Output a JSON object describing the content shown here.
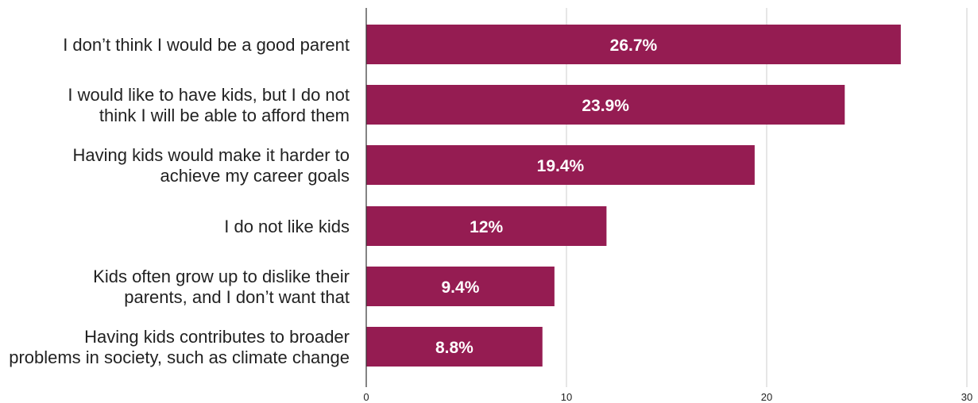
{
  "chart_data": {
    "type": "bar",
    "orientation": "horizontal",
    "title": "",
    "xlabel": "",
    "ylabel": "",
    "categories": [
      [
        "I don’t think I would be a good parent"
      ],
      [
        "I would like to have kids, but I do not",
        "think I will be able to afford them"
      ],
      [
        "Having kids would make it harder to",
        "achieve my career goals"
      ],
      [
        "I do not like kids"
      ],
      [
        "Kids often grow up to dislike their",
        "parents, and I don’t want that"
      ],
      [
        "Having kids contributes to broader",
        "problems in society, such as climate change"
      ]
    ],
    "values": [
      26.7,
      23.9,
      19.4,
      12,
      9.4,
      8.8
    ],
    "value_labels": [
      "26.7%",
      "23.9%",
      "19.4%",
      "12%",
      "9.4%",
      "8.8%"
    ],
    "xlim": [
      0,
      30
    ],
    "xticks": [
      0,
      10,
      20,
      30
    ],
    "xtick_labels": [
      "0",
      "10",
      "20",
      "30"
    ],
    "grid": true,
    "legend": "none",
    "bar_color": "#951c52",
    "grid_color": "#cccccc",
    "axis_color": "#333333"
  }
}
